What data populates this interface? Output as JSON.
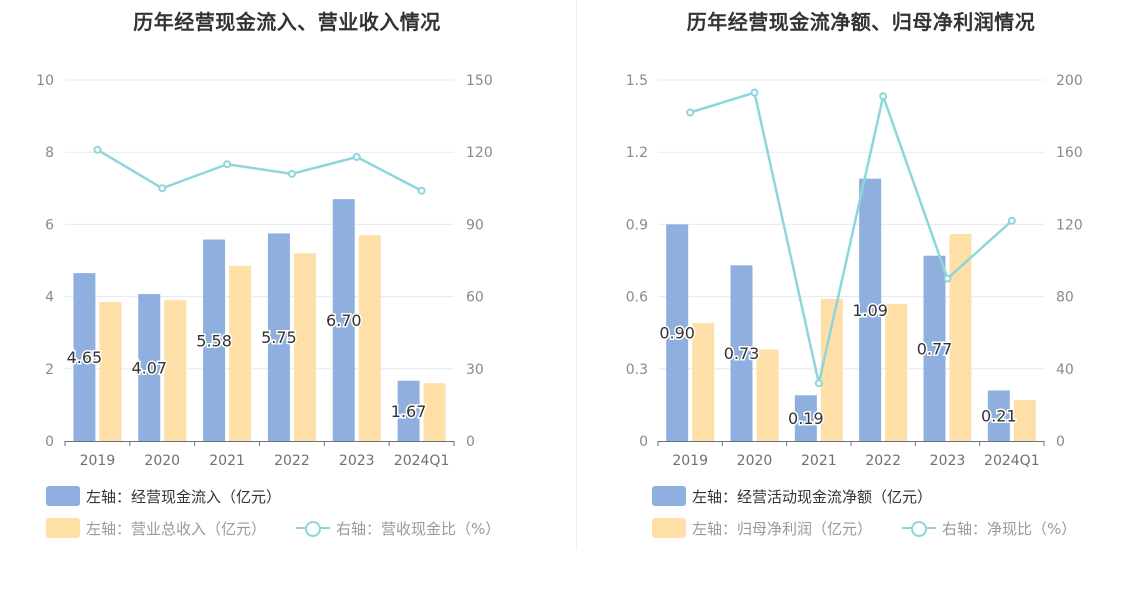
{
  "chart_data": [
    {
      "type": "bar",
      "title": "历年经营现金流入、营业收入情况",
      "categories": [
        "2019",
        "2020",
        "2021",
        "2022",
        "2023",
        "2024Q1"
      ],
      "left_axis": {
        "ylim": [
          0,
          10
        ],
        "ticks": [
          "0",
          "2",
          "4",
          "6",
          "8",
          "10"
        ]
      },
      "right_axis": {
        "ylim": [
          0,
          150
        ],
        "ticks": [
          "0",
          "30",
          "60",
          "90",
          "120",
          "150"
        ]
      },
      "series": [
        {
          "name": "左轴：经营现金流入（亿元）",
          "type": "bar",
          "axis": "left",
          "color": "#8fb0df",
          "values": [
            4.65,
            4.07,
            5.58,
            5.75,
            6.7,
            1.67
          ],
          "labels": [
            "4.65",
            "4.07",
            "5.58",
            "5.75",
            "6.70",
            "1.67"
          ]
        },
        {
          "name": "左轴：营业总收入（亿元）",
          "type": "bar",
          "axis": "left",
          "color": "#fedfa8",
          "values": [
            3.85,
            3.9,
            4.85,
            5.2,
            5.7,
            1.6
          ]
        },
        {
          "name": "右轴：营收现金比（%）",
          "type": "line",
          "axis": "right",
          "color": "#8dd6db",
          "values": [
            121,
            105,
            115,
            111,
            118,
            104
          ]
        }
      ]
    },
    {
      "type": "bar",
      "title": "历年经营现金流净额、归母净利润情况",
      "categories": [
        "2019",
        "2020",
        "2021",
        "2022",
        "2023",
        "2024Q1"
      ],
      "left_axis": {
        "ylim": [
          0,
          1.5
        ],
        "ticks": [
          "0",
          "0.3",
          "0.6",
          "0.9",
          "1.2",
          "1.5"
        ]
      },
      "right_axis": {
        "ylim": [
          0,
          200
        ],
        "ticks": [
          "0",
          "40",
          "80",
          "120",
          "160",
          "200"
        ]
      },
      "series": [
        {
          "name": "左轴：经营活动现金流净额（亿元）",
          "type": "bar",
          "axis": "left",
          "color": "#8fb0df",
          "values": [
            0.9,
            0.73,
            0.19,
            1.09,
            0.77,
            0.21
          ],
          "labels": [
            "0.90",
            "0.73",
            "0.19",
            "1.09",
            "0.77",
            "0.21"
          ]
        },
        {
          "name": "左轴：归母净利润（亿元）",
          "type": "bar",
          "axis": "left",
          "color": "#fedfa8",
          "values": [
            0.49,
            0.38,
            0.59,
            0.57,
            0.86,
            0.17
          ]
        },
        {
          "name": "右轴：净现比（%）",
          "type": "line",
          "axis": "right",
          "color": "#8dd6db",
          "values": [
            182,
            193,
            32,
            191,
            90,
            122
          ]
        }
      ]
    }
  ]
}
